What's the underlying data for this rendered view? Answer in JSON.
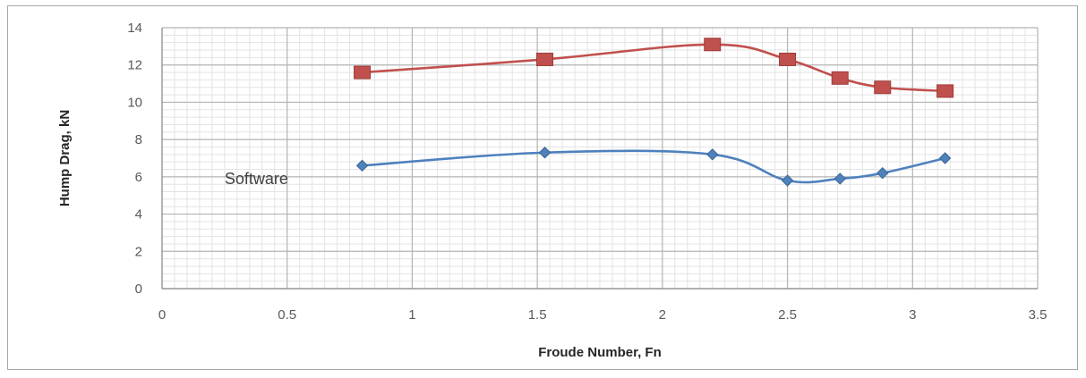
{
  "chart_data": {
    "type": "line",
    "title": "",
    "xlabel": "Froude Number, Fn",
    "ylabel": "Hump Drag, kN",
    "xlim": [
      0,
      3.5
    ],
    "ylim": [
      0,
      14
    ],
    "xticks": [
      "0",
      "0.5",
      "1",
      "1.5",
      "2",
      "2.5",
      "3",
      "3.5"
    ],
    "yticks": [
      "0",
      "2",
      "4",
      "6",
      "8",
      "10",
      "12",
      "14"
    ],
    "grid": true,
    "legend": "none",
    "annotations": [
      {
        "text": "Software",
        "x": 0.25,
        "y": 5.6
      }
    ],
    "series": [
      {
        "color": "#c0504d",
        "marker": "square",
        "x": [
          0.8,
          1.53,
          2.2,
          2.5,
          2.71,
          2.88,
          3.13
        ],
        "y": [
          11.6,
          12.3,
          13.1,
          12.3,
          11.3,
          10.8,
          10.6
        ]
      },
      {
        "color": "#4f81bd",
        "marker": "diamond",
        "x": [
          0.8,
          1.53,
          2.2,
          2.5,
          2.71,
          2.88,
          3.13
        ],
        "y": [
          6.6,
          7.3,
          7.2,
          5.8,
          5.9,
          6.2,
          7.0
        ]
      }
    ]
  }
}
